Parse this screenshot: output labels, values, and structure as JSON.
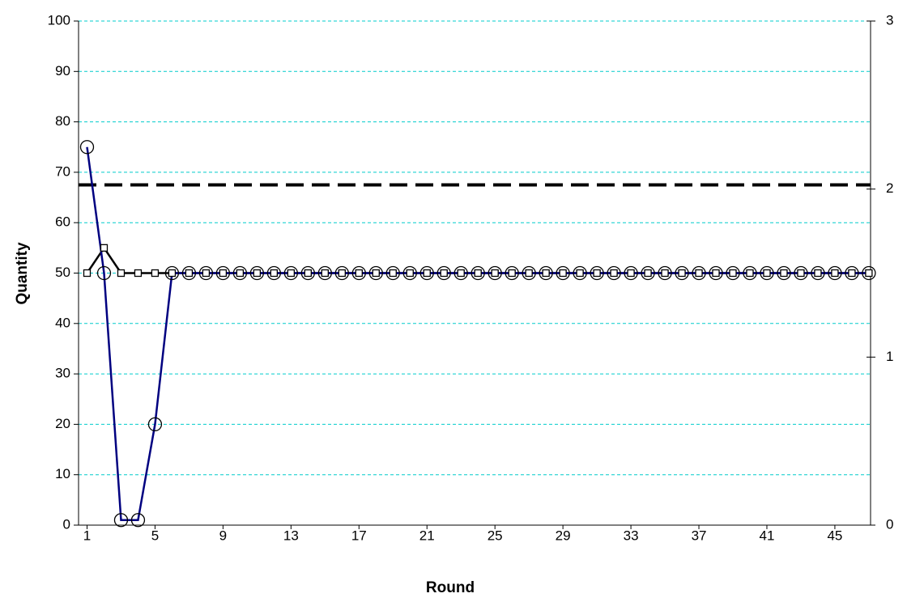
{
  "chart_data": {
    "type": "line",
    "x": [
      1,
      2,
      3,
      4,
      5,
      6,
      7,
      8,
      9,
      10,
      11,
      12,
      13,
      14,
      15,
      16,
      17,
      18,
      19,
      20,
      21,
      22,
      23,
      24,
      25,
      26,
      27,
      28,
      29,
      30,
      31,
      32,
      33,
      34,
      35,
      36,
      37,
      38,
      39,
      40,
      41,
      42,
      43,
      44,
      45,
      46,
      47
    ],
    "series": [
      {
        "color": "#000000",
        "marker": "square",
        "values": [
          50,
          55,
          50,
          50,
          50,
          50,
          50,
          50,
          50,
          50,
          50,
          50,
          50,
          50,
          50,
          50,
          50,
          50,
          50,
          50,
          50,
          50,
          50,
          50,
          50,
          50,
          50,
          50,
          50,
          50,
          50,
          50,
          50,
          50,
          50,
          50,
          50,
          50,
          50,
          50,
          50,
          50,
          50,
          50,
          50,
          50,
          50
        ]
      },
      {
        "color": "#000080",
        "marker": "circle",
        "values": [
          75,
          50,
          1,
          1,
          20,
          50,
          50,
          50,
          50,
          50,
          50,
          50,
          50,
          50,
          50,
          50,
          50,
          50,
          50,
          50,
          50,
          50,
          50,
          50,
          50,
          50,
          50,
          50,
          50,
          50,
          50,
          50,
          50,
          50,
          50,
          50,
          50,
          50,
          50,
          50,
          50,
          50,
          50,
          50,
          50,
          50,
          50
        ]
      }
    ],
    "reference_line": 67.5,
    "x_label": "Round",
    "y_label": "Quantity",
    "xlim": [
      0.5,
      47.1
    ],
    "xticks": [
      1,
      5,
      9,
      13,
      17,
      21,
      25,
      29,
      33,
      37,
      41,
      45
    ],
    "ylim": [
      0,
      100
    ],
    "yticks": [
      0,
      10,
      20,
      30,
      40,
      50,
      60,
      70,
      80,
      90,
      100
    ],
    "y2lim": [
      0,
      3
    ],
    "y2ticks": [
      0,
      1,
      2,
      3
    ],
    "grid": true,
    "grid_color": "#00cccc"
  }
}
